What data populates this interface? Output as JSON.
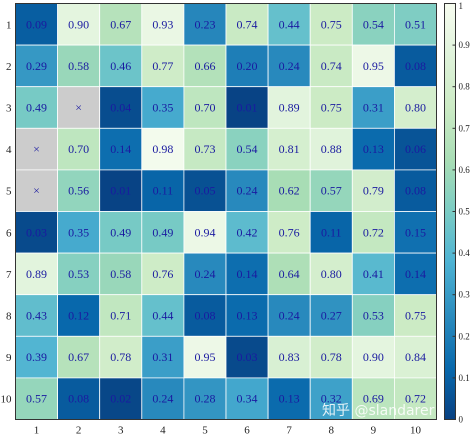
{
  "chart_data": {
    "type": "heatmap",
    "title": "",
    "xlabel": "",
    "ylabel": "",
    "x_categories": [
      "1",
      "2",
      "3",
      "4",
      "5",
      "6",
      "7",
      "8",
      "9",
      "10"
    ],
    "y_categories": [
      "1",
      "2",
      "3",
      "4",
      "5",
      "6",
      "7",
      "8",
      "9",
      "10"
    ],
    "missing_marker": "×",
    "missing_color": "#cccccc",
    "values": [
      [
        0.09,
        0.9,
        0.67,
        0.93,
        0.23,
        0.74,
        0.44,
        0.75,
        0.54,
        0.51
      ],
      [
        0.29,
        0.58,
        0.46,
        0.77,
        0.66,
        0.2,
        0.24,
        0.74,
        0.95,
        0.08
      ],
      [
        0.49,
        null,
        0.04,
        0.35,
        0.7,
        0.01,
        0.89,
        0.75,
        0.31,
        0.8
      ],
      [
        null,
        0.7,
        0.14,
        0.98,
        0.73,
        0.54,
        0.81,
        0.88,
        0.13,
        0.06
      ],
      [
        null,
        0.56,
        0.01,
        0.11,
        0.05,
        0.24,
        0.62,
        0.57,
        0.79,
        0.08
      ],
      [
        0.03,
        0.35,
        0.49,
        0.49,
        0.94,
        0.42,
        0.76,
        0.11,
        0.72,
        0.15
      ],
      [
        0.89,
        0.53,
        0.58,
        0.76,
        0.24,
        0.14,
        0.64,
        0.8,
        0.41,
        0.14
      ],
      [
        0.43,
        0.12,
        0.71,
        0.44,
        0.08,
        0.13,
        0.24,
        0.27,
        0.53,
        0.75
      ],
      [
        0.39,
        0.67,
        0.78,
        0.31,
        0.95,
        0.03,
        0.83,
        0.78,
        0.9,
        0.84
      ],
      [
        0.57,
        0.08,
        0.02,
        0.24,
        0.28,
        0.34,
        0.13,
        0.32,
        0.69,
        0.72
      ]
    ],
    "colorbar": {
      "range": [
        0,
        1
      ],
      "ticks": [
        "0",
        "0.1",
        "0.2",
        "0.3",
        "0.4",
        "0.5",
        "0.6",
        "0.7",
        "0.8",
        "0.9",
        "1"
      ]
    },
    "colormap": "GnBu",
    "label_color_dark": "#1a1aa0",
    "label_color_light": "#1a1aa0"
  },
  "watermark": "知乎 @slandarer"
}
